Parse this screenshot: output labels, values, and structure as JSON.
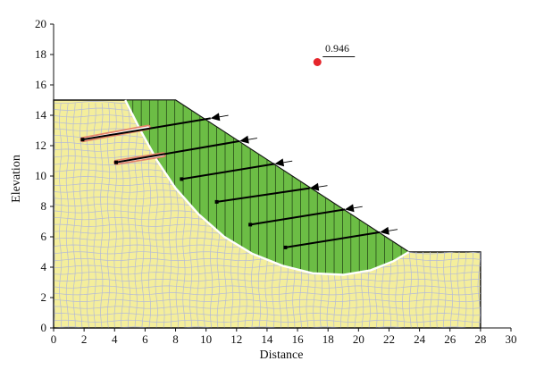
{
  "chart_data": {
    "type": "slope-stability",
    "xlabel": "Distance",
    "ylabel": "Elevation",
    "xlim": [
      0,
      30
    ],
    "ylim": [
      0,
      20
    ],
    "xticks": [
      0,
      2,
      4,
      6,
      8,
      10,
      12,
      14,
      16,
      18,
      20,
      22,
      24,
      26,
      28,
      30
    ],
    "yticks": [
      0,
      2,
      4,
      6,
      8,
      10,
      12,
      14,
      16,
      18,
      20
    ],
    "factor_of_safety": "0.946",
    "slip_center": [
      17.3,
      17.5
    ],
    "ground_profile": [
      [
        0,
        0
      ],
      [
        28,
        0
      ],
      [
        28,
        5
      ],
      [
        23.3,
        5
      ],
      [
        8,
        15
      ],
      [
        0,
        15
      ]
    ],
    "slip_surface": [
      [
        4.7,
        15
      ],
      [
        5.7,
        13
      ],
      [
        6.8,
        11
      ],
      [
        8,
        9.2
      ],
      [
        9.5,
        7.5
      ],
      [
        11.2,
        6
      ],
      [
        13,
        4.9
      ],
      [
        15,
        4.1
      ],
      [
        17,
        3.6
      ],
      [
        19,
        3.5
      ],
      [
        20.8,
        3.8
      ],
      [
        22.3,
        4.4
      ],
      [
        23.3,
        5
      ]
    ],
    "anchors": [
      {
        "head": [
          10.3,
          13.8
        ],
        "bond_start": [
          1.9,
          12.4
        ],
        "bond_end": [
          6.2,
          13.2
        ],
        "grouted": true
      },
      {
        "head": [
          12.2,
          12.3
        ],
        "bond_start": [
          4.1,
          10.9
        ],
        "bond_end": [
          7.2,
          11.4
        ],
        "grouted": true
      },
      {
        "head": [
          14.5,
          10.8
        ],
        "bond_start": [
          8.4,
          9.8
        ],
        "grouted": false
      },
      {
        "head": [
          16.8,
          9.2
        ],
        "bond_start": [
          10.7,
          8.3
        ],
        "grouted": false
      },
      {
        "head": [
          19.1,
          7.8
        ],
        "bond_start": [
          12.9,
          6.8
        ],
        "grouted": false
      },
      {
        "head": [
          21.4,
          6.3
        ],
        "bond_start": [
          15.2,
          5.3
        ],
        "grouted": false
      }
    ],
    "colors": {
      "soil": "#f4ee9c",
      "sliding_mass": "#6cbd45",
      "mesh": "#b3b9d8",
      "slip_line": "#ffffff",
      "grout": "#e5856a",
      "center_point": "#e5252b"
    }
  }
}
